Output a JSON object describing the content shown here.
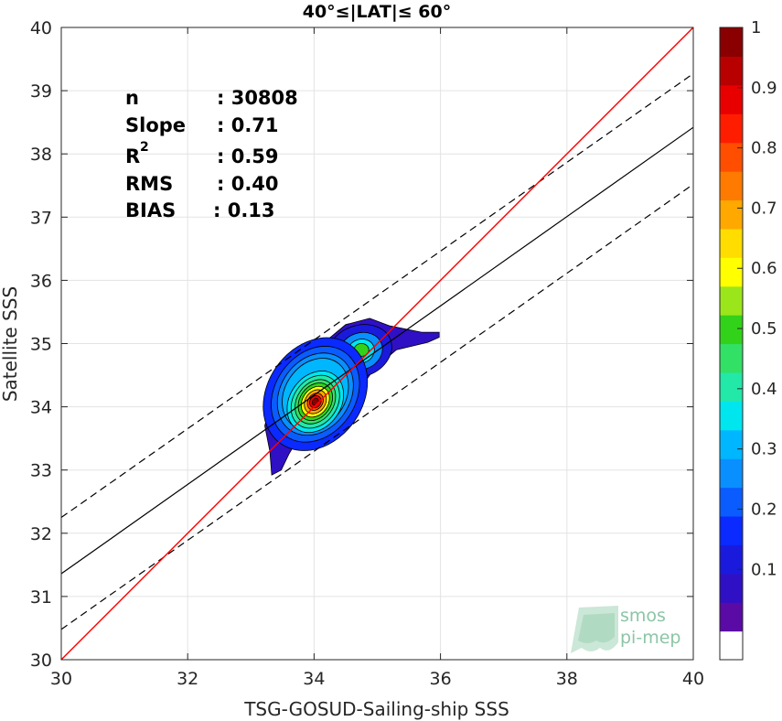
{
  "chart_data": {
    "type": "scatter",
    "title": "40°≤|LAT|≤ 60°",
    "xlabel": "TSG-GOSUD-Sailing-ship SSS",
    "ylabel": "Satellite SSS",
    "xlim": [
      30,
      40
    ],
    "ylim": [
      30,
      40
    ],
    "xticks": [
      "30",
      "32",
      "34",
      "36",
      "38",
      "40"
    ],
    "yticks": [
      "30",
      "31",
      "32",
      "33",
      "34",
      "35",
      "36",
      "37",
      "38",
      "39",
      "40"
    ],
    "grid": true,
    "stats": [
      {
        "label": "n",
        "value": ": 30808"
      },
      {
        "label": "Slope",
        "value": ": 0.71"
      },
      {
        "label": "R",
        "sup": "2",
        "value": ": 0.59"
      },
      {
        "label": "RMS",
        "value": ": 0.40"
      },
      {
        "label": "BIAS",
        "value": ": 0.13"
      }
    ],
    "lines": {
      "identity": {
        "x": [
          30,
          40
        ],
        "y": [
          30,
          40
        ],
        "color": "#ff0000"
      },
      "fit": {
        "x": [
          30,
          40
        ],
        "y": [
          31.36,
          38.42
        ],
        "color": "#000000"
      },
      "fit_upper": {
        "x": [
          30,
          40
        ],
        "y": [
          32.25,
          39.27
        ],
        "style": "dashed"
      },
      "fit_lower": {
        "x": [
          30,
          40
        ],
        "y": [
          30.48,
          37.52
        ],
        "style": "dashed"
      }
    },
    "density_peaks": [
      {
        "x": 34.02,
        "y": 34.08,
        "level": 1.0
      },
      {
        "x": 34.72,
        "y": 34.88,
        "level": 0.5
      }
    ],
    "colorbar": {
      "ticks": [
        "0.1",
        "0.2",
        "0.3",
        "0.4",
        "0.5",
        "0.6",
        "0.7",
        "0.8",
        "0.9",
        "1"
      ],
      "colors": [
        "#ffffff",
        "#5a0aa5",
        "#3010c4",
        "#1a1adc",
        "#0a2aff",
        "#0a5cff",
        "#0a8fff",
        "#00b6ff",
        "#00e6ee",
        "#22e8a8",
        "#33e066",
        "#33d21a",
        "#9ae61a",
        "#ffff00",
        "#ffdd00",
        "#ffa800",
        "#ff7a00",
        "#ff4e00",
        "#ff1d00",
        "#e80000",
        "#b80000",
        "#8a0000"
      ]
    },
    "watermark": {
      "line1": "smos",
      "line2": "pi-mep"
    }
  }
}
